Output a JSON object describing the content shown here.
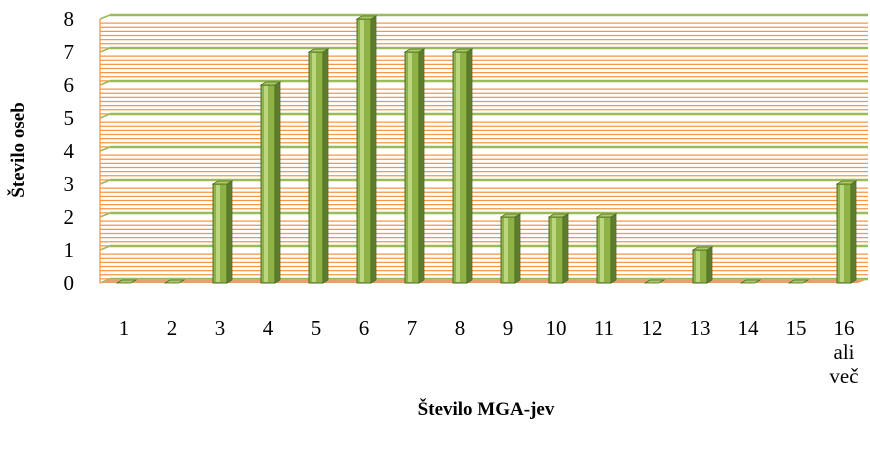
{
  "chart_data": {
    "type": "bar",
    "title": "",
    "xlabel": "Število MGA-jev",
    "ylabel": "Število oseb",
    "ylim": [
      0,
      8
    ],
    "yticks": [
      "0",
      "1",
      "2",
      "3",
      "4",
      "5",
      "6",
      "7",
      "8"
    ],
    "categories": [
      "1",
      "2",
      "3",
      "4",
      "5",
      "6",
      "7",
      "8",
      "9",
      "10",
      "11",
      "12",
      "13",
      "14",
      "15",
      "16 ali več"
    ],
    "category_lines": [
      [
        "1"
      ],
      [
        "2"
      ],
      [
        "3"
      ],
      [
        "4"
      ],
      [
        "5"
      ],
      [
        "6"
      ],
      [
        "7"
      ],
      [
        "8"
      ],
      [
        "9"
      ],
      [
        "10"
      ],
      [
        "11"
      ],
      [
        "12"
      ],
      [
        "13"
      ],
      [
        "14"
      ],
      [
        "15"
      ],
      [
        "16",
        "ali",
        "več"
      ]
    ],
    "values": [
      0,
      0,
      3,
      6,
      7,
      8,
      7,
      7,
      2,
      2,
      2,
      0,
      1,
      0,
      0,
      3
    ],
    "grid": true,
    "legend": "none",
    "colors": {
      "bar_front": "#8db347",
      "bar_highlight": "#c3dc8a",
      "bar_side": "#5e7d2c",
      "bar_top": "#a9cb66",
      "bar_outline": "#4f6b22",
      "major_grid": "#9bbb59",
      "minor_grid": "#f79646",
      "floor": "#e9a06b"
    }
  }
}
